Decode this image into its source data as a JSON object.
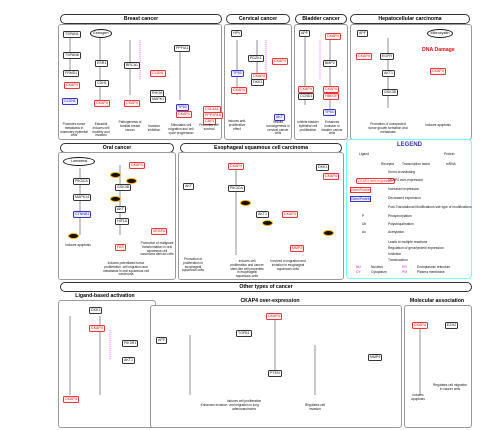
{
  "sections": {
    "breast": "Breast cancer",
    "cervical": "Cervical cancer",
    "bladder": "Bladder cancer",
    "hcc": "Hepatocellular carcinoma",
    "oral": "Oral cancer",
    "escc": "Esophageal squamous cell carcinoma",
    "other": "Other types of cancer",
    "ligand": "Ligand-based activation",
    "overexp": "CKAP4 over-expression",
    "molecular": "Molecular association"
  },
  "breast": {
    "nodes": {
      "tspan1": "TSPAN1",
      "tspan8": "TSPAN8",
      "frmd1": "FRMD1",
      "ckap4": "CKAP4",
      "cldn": "CLDN1",
      "estrogen": "Estrogen",
      "esr1": "ESR1",
      "cdh1": "CDH1",
      "ckap4b": "CKAP4",
      "brca1": "BRCA1",
      "ckap4c": "CKAP4",
      "ppfia1": "PPFIA1",
      "cldn1": "CLDN1",
      "ckap4d": "CKAP4",
      "rhoa": "RHOA",
      "mapk1": "MAPK1",
      "p53": "TP53",
      "col": "COL4A1",
      "ppp": "PPP2R1A",
      "cav1": "CAV1"
    },
    "captions": {
      "c1": "Promotes tumor metastasis in mammary epithelial cells",
      "c2": "Estradiol induces cell mobility and invasion",
      "c3": "Pathogenesis of familial breast cancer",
      "c4": "Invasion inhibition",
      "c5": "Stimulates cell migration and cell cycle progression",
      "c6": "Promotes cell survival"
    }
  },
  "cervical": {
    "nodes": {
      "hpv": "HPV",
      "p53": "TP53",
      "ckap4": "CKAP4",
      "pdzk": "PDZK1",
      "ckap4b": "CKAP4",
      "dkk1": "DKK1",
      "ckap4c": "CKAP4",
      "akt": "AKT"
    },
    "captions": {
      "c1": "Induces anti-proliferative effect",
      "c2": "Inhibits tumorigenesis in cervical cancer cells"
    }
  },
  "bladder": {
    "nodes": {
      "apf": "APF",
      "ckap4": "CKAP4",
      "ckap4b": "CKAP4",
      "ccnd": "CCND1",
      "bmp": "BMP2",
      "ckap4c": "CKAP4",
      "hbegf": "HBEGF",
      "tp53": "TP53"
    },
    "captions": {
      "c1": "Inhibits bladder epithelial cell proliferation",
      "c2": "Enhances invasion in bladder cancer cells"
    }
  },
  "hcc": {
    "nodes": {
      "apf": "APF",
      "ckap4": "CKAP4",
      "egfr": "EGFR",
      "akt1": "AKT1",
      "gsk3b": "GSK3B",
      "ckap4b": "CKAP4"
    },
    "dna": "DNA Damage",
    "microcystin": "Microcystin",
    "captions": {
      "c1": "Promotion of unexpected tumor growth formation and metastasis",
      "c2": "Induces apoptosis"
    }
  },
  "oral": {
    "nodes": {
      "ckap4": "CKAP4",
      "pik3": "PIK3CA",
      "mapk": "MAPK14",
      "ctnn": "CTNNB1",
      "akt": "AKT",
      "hif": "HIF1A",
      "fas": "FAS",
      "gsk": "GSK3B",
      "vegf": "VEGFA"
    },
    "lumineral": "Lumineral",
    "captions": {
      "c1": "Induces apoptosis",
      "c2": "Induces potentiated tumor proliferation, cell migration and metastasis in oral squamous cell carcinoma",
      "c3": "Promotion of malignant transformation in oral squamous cell carcinoma derived cells"
    }
  },
  "escc": {
    "nodes": {
      "ckap4": "CKAP4",
      "akt": "AKT",
      "pik3ca": "PIK3CA",
      "akt1": "AKT1",
      "ckap4b": "CKAP4",
      "dkk1": "DKK1",
      "ckap4c": "CKAP4",
      "mmp": "MMP2"
    },
    "captions": {
      "c1": "Promotion of proliferation in esophageal squamous cells",
      "c2": "Induces cell proliferation and cancer stem-like cell properties in esophageal squamous cells",
      "c3": "Involved in migration and invasion in esophageal squamous cells"
    }
  },
  "other": {
    "nodes": {
      "dkk1": "DKK1",
      "ckap4": "CKAP4",
      "ckap4b": "CKAP4",
      "pi3k": "PIK3R1",
      "akt": "AKT1",
      "apf": "APF",
      "tgfb": "TGFB1",
      "ckap4c": "CKAP4",
      "pten": "PTEN",
      "mmp": "MMP9",
      "ckap4d": "CKAP4",
      "ezh": "EZH2"
    },
    "captions": {
      "c1": "Enhances invasion",
      "c2": "Induces cell proliferation and migration in lung adenocarcinoma",
      "c3": "Regulates cell invasion",
      "c4": "Induces apoptosis",
      "c5": "Regulates cell migration in cancer cells"
    }
  },
  "legend": {
    "title": "LEGEND",
    "ligand": "Ligand",
    "protein": "Protein",
    "receptor": "Receptor",
    "tf": "Transcription factor",
    "mrna": "mRNA",
    "ckap4_over": "CKAP4 over-expression",
    "homo": "Homo-crosslinking",
    "gene_red": "Gene/Protein",
    "increased": "Increased expression",
    "gene_blue": "Gene/Protein",
    "decreased": "Decreased expression",
    "ptm": "Post-Translational Modifications site type of modifications",
    "p": "P",
    "phos": "Phosphorylation",
    "ub": "Ub",
    "poly": "Polyubiquitination",
    "ac": "Ac",
    "acet": "Acetylation",
    "leads": "Leads to multiple reactions",
    "reg": "Regulation of gene/protein expression",
    "inhib": "Inhibition",
    "transloc": "Translocation",
    "nu_key": "NU",
    "nu": "Nucleus",
    "er_key": "ER",
    "er": "Endoplasmic reticulum",
    "cy_key": "CY",
    "cy": "Cytoplasm",
    "pm_key": "PM",
    "pm": "Plasma membrane"
  },
  "colors": {
    "red": "#e33333",
    "blue": "#3333cc",
    "cyan": "#77ffff",
    "magenta": "#ff33ff"
  }
}
